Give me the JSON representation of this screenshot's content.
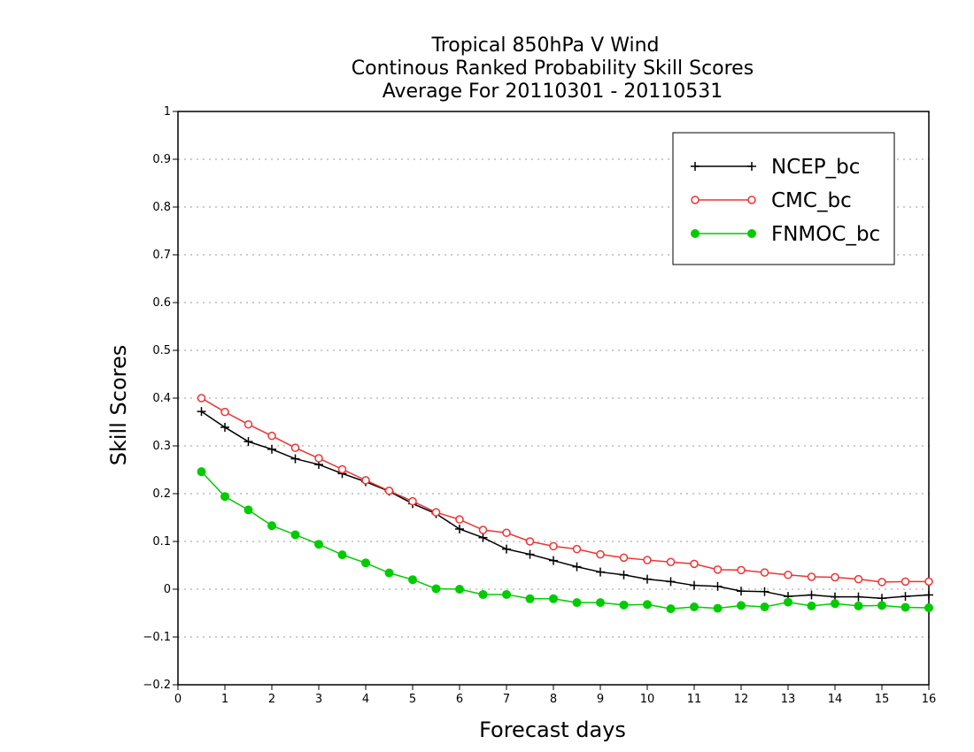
{
  "chart_data": {
    "type": "line",
    "title": [
      "Tropical 850hPa V Wind",
      "Continous Ranked Probability Skill Scores",
      "Average For 20110301 - 20110531"
    ],
    "xlabel": "Forecast days",
    "ylabel": "Skill Scores",
    "xlim": [
      0,
      16
    ],
    "ylim": [
      -0.2,
      1
    ],
    "x_ticks": [
      0,
      1,
      2,
      3,
      4,
      5,
      6,
      7,
      8,
      9,
      10,
      11,
      12,
      13,
      14,
      15,
      16
    ],
    "x_tick_labels": [
      "0",
      "1",
      "2",
      "3",
      "4",
      "5",
      "6",
      "7",
      "8",
      "9",
      "10",
      "11",
      "12",
      "13",
      "14",
      "15",
      "16"
    ],
    "y_ticks": [
      -0.2,
      -0.1,
      0,
      0.1,
      0.2,
      0.3,
      0.4,
      0.5,
      0.6,
      0.7,
      0.8,
      0.9,
      1
    ],
    "y_tick_labels": [
      "−0.2",
      "−0.1",
      "0",
      "0.1",
      "0.2",
      "0.3",
      "0.4",
      "0.5",
      "0.6",
      "0.7",
      "0.8",
      "0.9",
      "1"
    ],
    "grid": "horizontal dotted",
    "legend_position": "top-right",
    "x": [
      0.5,
      1,
      1.5,
      2,
      2.5,
      3,
      3.5,
      4,
      4.5,
      5,
      5.5,
      6,
      6.5,
      7,
      7.5,
      8,
      8.5,
      9,
      9.5,
      10,
      10.5,
      11,
      11.5,
      12,
      12.5,
      13,
      13.5,
      14,
      14.5,
      15,
      15.5,
      16
    ],
    "series": [
      {
        "name": "NCEP_bc",
        "color": "#000000",
        "marker": "plus",
        "values": [
          0.372,
          0.339,
          0.309,
          0.293,
          0.273,
          0.261,
          0.242,
          0.225,
          0.205,
          0.179,
          0.158,
          0.126,
          0.108,
          0.084,
          0.073,
          0.06,
          0.047,
          0.036,
          0.03,
          0.021,
          0.016,
          0.008,
          0.006,
          -0.004,
          -0.005,
          -0.015,
          -0.012,
          -0.016,
          -0.016,
          -0.019,
          -0.015,
          -0.012
        ]
      },
      {
        "name": "CMC_bc",
        "color": "#ee3333",
        "marker": "open-circle",
        "values": [
          0.4,
          0.371,
          0.345,
          0.321,
          0.296,
          0.274,
          0.251,
          0.228,
          0.206,
          0.184,
          0.161,
          0.146,
          0.124,
          0.118,
          0.1,
          0.09,
          0.084,
          0.073,
          0.066,
          0.061,
          0.057,
          0.053,
          0.041,
          0.04,
          0.035,
          0.03,
          0.026,
          0.025,
          0.021,
          0.015,
          0.016,
          0.016
        ]
      },
      {
        "name": "FNMOC_bc",
        "color": "#00cc00",
        "marker": "filled-circle",
        "values": [
          0.246,
          0.194,
          0.166,
          0.133,
          0.114,
          0.094,
          0.072,
          0.055,
          0.034,
          0.02,
          0.001,
          0.0,
          -0.011,
          -0.011,
          -0.02,
          -0.02,
          -0.028,
          -0.028,
          -0.033,
          -0.032,
          -0.041,
          -0.037,
          -0.04,
          -0.034,
          -0.037,
          -0.027,
          -0.035,
          -0.03,
          -0.035,
          -0.034,
          -0.038,
          -0.039
        ]
      }
    ]
  }
}
